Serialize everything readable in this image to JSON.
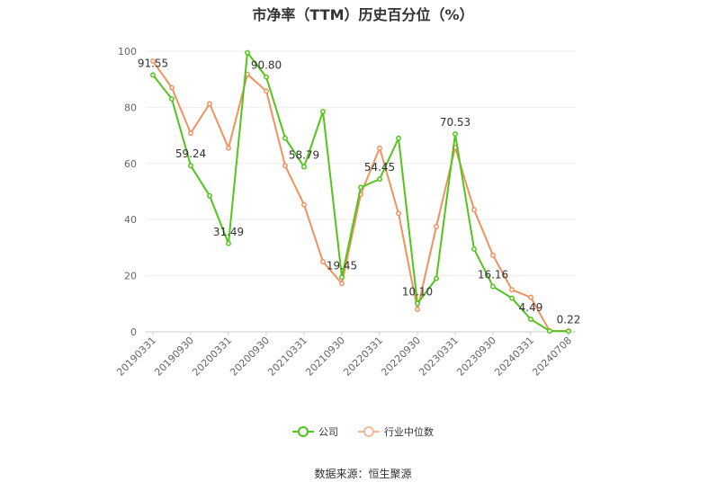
{
  "chart_data": {
    "type": "line",
    "title": "市净率（TTM）历史百分位（%）",
    "source": "数据来源：恒生聚源",
    "yticks": [
      0,
      20,
      40,
      60,
      80,
      100
    ],
    "ylim": [
      0,
      100
    ],
    "x_tick_labels": [
      "20190331",
      "20190930",
      "20200331",
      "20200930",
      "20210331",
      "20210930",
      "20220331",
      "20220930",
      "20230331",
      "20230930",
      "20240331",
      "20240708"
    ],
    "grid": true,
    "legend_position": "bottom",
    "series": [
      {
        "name": "公司",
        "color": "#52c41a",
        "values": [
          91.55,
          83,
          59.24,
          48.5,
          31.49,
          99.5,
          90.8,
          69,
          58.79,
          78.5,
          19.45,
          51.5,
          54.45,
          69,
          10.1,
          19,
          70.53,
          29.5,
          16.16,
          12,
          4.49,
          0.3,
          0.22
        ],
        "labels": {
          "0": "91.55",
          "2": "59.24",
          "4": "31.49",
          "6": "90.80",
          "8": "58.79",
          "10": "19.45",
          "12": "54.45",
          "14": "10.10",
          "16": "70.53",
          "18": "16.16",
          "20": "4.49",
          "22": "0.22"
        }
      },
      {
        "name": "行业中位数",
        "color": "#f0915e",
        "values": [
          96.5,
          87,
          70.8,
          81.3,
          65.5,
          91.8,
          85.8,
          59.2,
          45.3,
          25,
          17.2,
          49,
          65.5,
          42.2,
          8,
          37.5,
          65.7,
          43.5,
          27.3,
          15,
          12.3,
          0.3,
          0.3
        ]
      }
    ]
  }
}
